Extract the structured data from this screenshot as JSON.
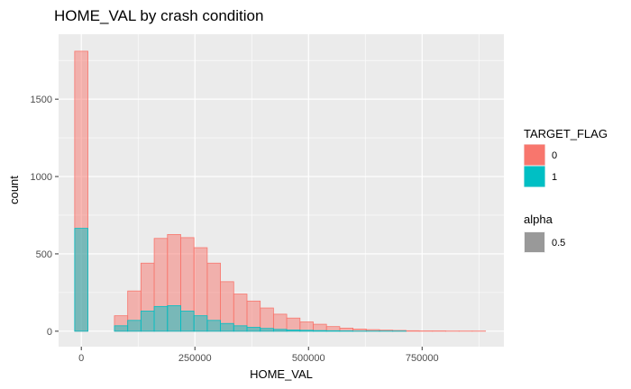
{
  "chart_data": {
    "type": "histogram",
    "title": "HOME_VAL by crash condition",
    "xlabel": "HOME_VAL",
    "ylabel": "count",
    "xlim": [
      -50000,
      930000
    ],
    "ylim": [
      -100,
      1920
    ],
    "x_ticks": [
      0,
      250000,
      500000,
      750000
    ],
    "x_tick_labels": [
      "0",
      "250000",
      "500000",
      "750000"
    ],
    "y_ticks": [
      0,
      500,
      1000,
      1500
    ],
    "y_tick_labels": [
      "0",
      "500",
      "1000",
      "1500"
    ],
    "bin_width": 29167,
    "bin_starts": [
      -14583,
      14583,
      43750,
      72917,
      102083,
      131250,
      160417,
      189583,
      218750,
      247917,
      277083,
      306250,
      335417,
      364583,
      393750,
      422917,
      452083,
      481250,
      510417,
      539583,
      568750,
      597917,
      627083,
      656250,
      685417,
      714583,
      743750,
      772917,
      802083,
      831250,
      860417
    ],
    "series": [
      {
        "name": "0",
        "color": "#F8766D",
        "values": [
          1810,
          0,
          0,
          100,
          260,
          440,
          600,
          625,
          605,
          540,
          440,
          320,
          240,
          195,
          150,
          110,
          85,
          60,
          45,
          30,
          20,
          14,
          10,
          7,
          5,
          3,
          2,
          2,
          1,
          1,
          1
        ]
      },
      {
        "name": "1",
        "color": "#00BFC4",
        "values": [
          665,
          0,
          0,
          35,
          70,
          130,
          160,
          165,
          130,
          100,
          70,
          50,
          35,
          25,
          18,
          12,
          8,
          6,
          4,
          3,
          2,
          1,
          1,
          1,
          1,
          0,
          0,
          0,
          0,
          0,
          0
        ]
      }
    ],
    "position": "identity",
    "alpha": 0.5,
    "grid": true,
    "legend": {
      "placement": "right",
      "groups": [
        {
          "title": "TARGET_FLAG",
          "entries": [
            {
              "label": "0",
              "color": "#F8766D"
            },
            {
              "label": "1",
              "color": "#00BFC4"
            }
          ]
        },
        {
          "title": "alpha",
          "entries": [
            {
              "label": "0.5",
              "color": "#999999"
            }
          ]
        }
      ]
    }
  }
}
